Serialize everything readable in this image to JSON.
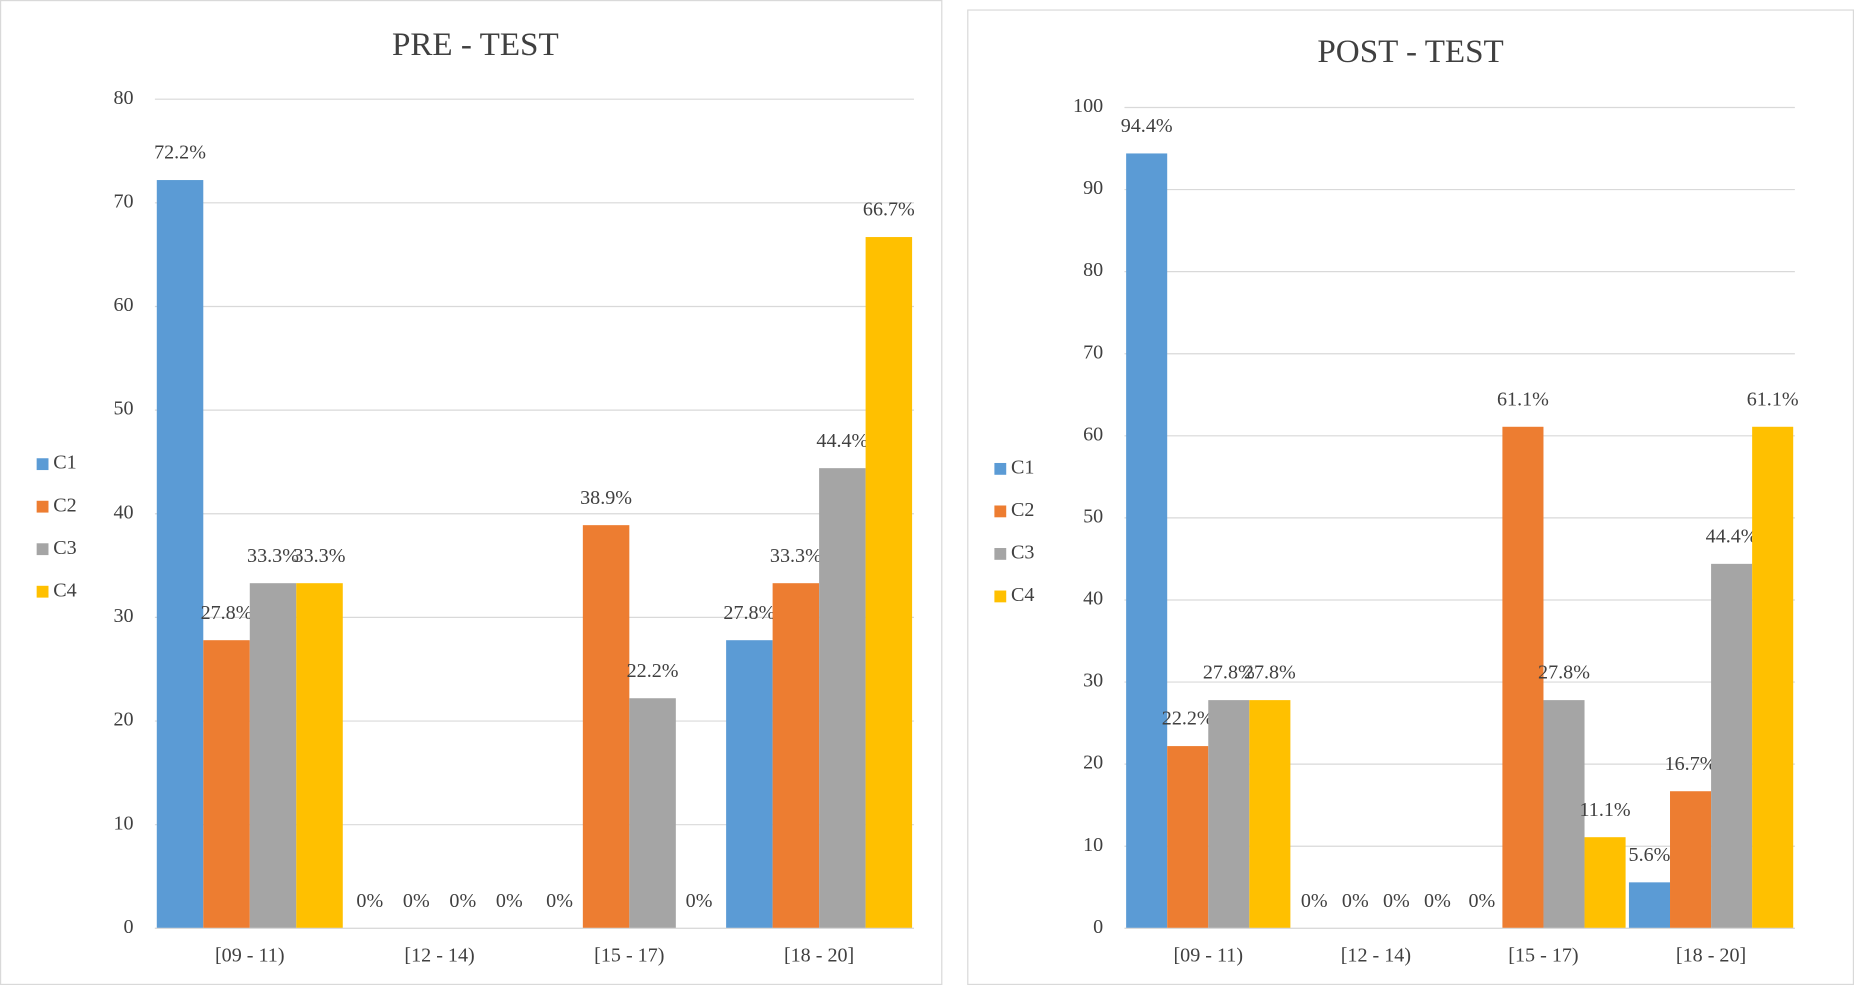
{
  "chart_data": [
    {
      "type": "bar",
      "title": "PRE - TEST",
      "categories": [
        "[09 - 11)",
        "[12 - 14)",
        "[15 - 17)",
        "[18 - 20]"
      ],
      "series": [
        {
          "name": "C1",
          "color": "#5b9bd5",
          "values": [
            72.2,
            0,
            0,
            27.8
          ],
          "value_labels": [
            "72.2%",
            "0%",
            "0%",
            "27.8%"
          ]
        },
        {
          "name": "C2",
          "color": "#ed7d31",
          "values": [
            27.8,
            0,
            38.9,
            33.3
          ],
          "value_labels": [
            "27.8%",
            "0%",
            "38.9%",
            "33.3%"
          ]
        },
        {
          "name": "C3",
          "color": "#a5a5a5",
          "values": [
            33.3,
            0,
            22.2,
            44.4
          ],
          "value_labels": [
            "33.3%",
            "0%",
            "22.2%",
            "44.4%"
          ]
        },
        {
          "name": "C4",
          "color": "#ffc000",
          "values": [
            33.3,
            0,
            0,
            66.7
          ],
          "value_labels": [
            "33.3%",
            "0%",
            "0%",
            "66.7%"
          ]
        }
      ],
      "ylim": [
        0,
        80
      ],
      "yticks": [
        0,
        10,
        20,
        30,
        40,
        50,
        60,
        70,
        80
      ],
      "grid": true,
      "legend": "left"
    },
    {
      "type": "bar",
      "title": "POST - TEST",
      "categories": [
        "[09 - 11)",
        "[12 - 14)",
        "[15 - 17)",
        "[18 - 20]"
      ],
      "series": [
        {
          "name": "C1",
          "color": "#5b9bd5",
          "values": [
            94.4,
            0,
            0,
            5.6
          ],
          "value_labels": [
            "94.4%",
            "0%",
            "0%",
            "5.6%"
          ]
        },
        {
          "name": "C2",
          "color": "#ed7d31",
          "values": [
            22.2,
            0,
            61.1,
            16.7
          ],
          "value_labels": [
            "22.2%",
            "0%",
            "61.1%",
            "16.7%"
          ]
        },
        {
          "name": "C3",
          "color": "#a5a5a5",
          "values": [
            27.8,
            0,
            27.8,
            44.4
          ],
          "value_labels": [
            "27.8%",
            "0%",
            "27.8%",
            "44.4%"
          ]
        },
        {
          "name": "C4",
          "color": "#ffc000",
          "values": [
            27.8,
            0,
            11.1,
            61.1
          ],
          "value_labels": [
            "27.8%",
            "0%",
            "11.1%",
            "61.1%"
          ]
        }
      ],
      "ylim": [
        0,
        100
      ],
      "yticks": [
        0,
        10,
        20,
        30,
        40,
        50,
        60,
        70,
        80,
        90,
        100
      ],
      "grid": true,
      "legend": "left"
    }
  ]
}
